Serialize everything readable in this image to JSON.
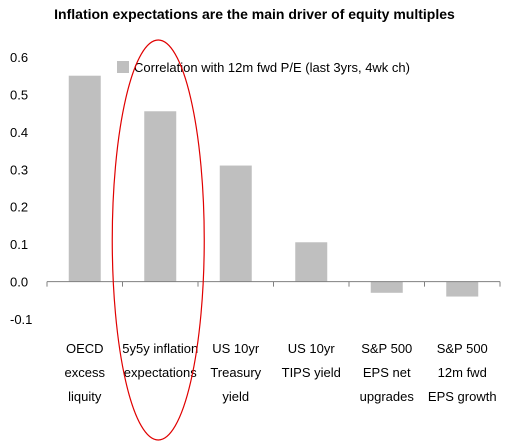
{
  "chart_data": {
    "type": "bar",
    "title": "Inflation expectations are the main driver of equity multiples",
    "categories": [
      [
        "OECD",
        "excess",
        "liquity"
      ],
      [
        "5y5y inflation",
        "expectations"
      ],
      [
        "US 10yr",
        "Treasury",
        "yield"
      ],
      [
        "US 10yr",
        "TIPS yield"
      ],
      [
        "S&P 500",
        "EPS net",
        "upgrades"
      ],
      [
        "S&P 500",
        "12m fwd",
        "EPS growth"
      ]
    ],
    "series": [
      {
        "name": "Correlation with 12m fwd P/E (last 3yrs, 4wk ch)",
        "values": [
          0.55,
          0.455,
          0.31,
          0.105,
          -0.03,
          -0.04
        ]
      }
    ],
    "ylim": [
      -0.1,
      0.6
    ],
    "yticks": [
      "0.6",
      "0.5",
      "0.4",
      "0.3",
      "0.2",
      "0.1",
      "0.0",
      "-0.1"
    ],
    "ytick_values": [
      0.6,
      0.5,
      0.4,
      0.3,
      0.2,
      0.1,
      0.0,
      -0.1
    ],
    "grid": false,
    "legend_position": "top-center",
    "highlighted_category": 1,
    "colors": {
      "bar": "#bfbfbf",
      "axis": "#808080",
      "highlight": "#e00000"
    }
  }
}
